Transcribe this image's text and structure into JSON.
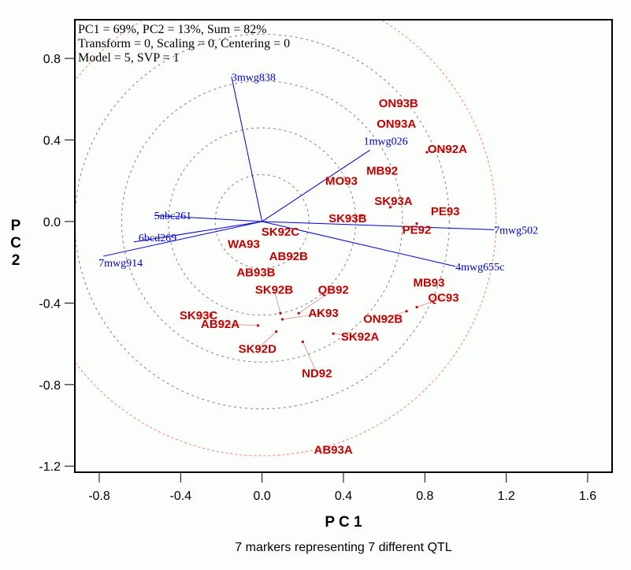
{
  "chart_data": {
    "type": "scatter",
    "subtype": "biplot",
    "xlabel": "P C 1",
    "ylabel": [
      "P",
      "C",
      "2"
    ],
    "caption": "7 markers representing 7 different QTL",
    "xlim": [
      -0.92,
      1.72
    ],
    "ylim": [
      -1.23,
      0.99
    ],
    "x_ticks": [
      -0.8,
      -0.4,
      0.0,
      0.4,
      0.8,
      1.2,
      1.6
    ],
    "x_tick_labels": [
      "-0.8",
      "-0.4",
      "0.0",
      "0.4",
      "0.8",
      "1.2",
      "1.6"
    ],
    "y_ticks": [
      0.8,
      0.4,
      0.0,
      -0.4,
      -0.8,
      -1.2
    ],
    "y_tick_labels": [
      "0.8",
      "0.4",
      "0.0",
      "-0.4",
      "-0.8",
      "-1.2"
    ],
    "stats_lines": [
      "PC1 = 69%, PC2 = 13%, Sum = 82%",
      "Transform = 0, Scaling = 0, Centering = 0",
      "Model = 5, SVP = 1"
    ],
    "concentric_circles": {
      "center": [
        0,
        0
      ],
      "grey_radii": [
        0.23,
        0.46,
        0.69,
        0.92
      ],
      "red_radii": [
        1.15
      ],
      "grey_color": "#808080",
      "red_color": "#f08080"
    },
    "vectors": {
      "color": "#0000cc",
      "origin": [
        0,
        0
      ],
      "items": [
        {
          "name": "3mwg838",
          "x": -0.15,
          "y": 0.71
        },
        {
          "name": "1mwg026",
          "x": 0.53,
          "y": 0.35
        },
        {
          "name": "5abc261",
          "x": -0.53,
          "y": 0.03
        },
        {
          "name": "6bcd269",
          "x": -0.63,
          "y": -0.1
        },
        {
          "name": "7mwg914",
          "x": -0.78,
          "y": -0.17
        },
        {
          "name": "7mwg502",
          "x": 1.14,
          "y": -0.04
        },
        {
          "name": "4mwg655c",
          "x": 0.95,
          "y": -0.22
        }
      ]
    },
    "points": {
      "color": "#c00000",
      "items": [
        {
          "name": "ON93B",
          "x": 0.67,
          "y": 0.58
        },
        {
          "name": "ON93A",
          "x": 0.66,
          "y": 0.48
        },
        {
          "name": "ON92A",
          "x": 0.81,
          "y": 0.34
        },
        {
          "name": "MB92",
          "x": 0.59,
          "y": 0.25
        },
        {
          "name": "MO93",
          "x": 0.39,
          "y": 0.2
        },
        {
          "name": "SK93A",
          "x": 0.63,
          "y": 0.07
        },
        {
          "name": "SK93B",
          "x": 0.49,
          "y": 0.03
        },
        {
          "name": "PE93",
          "x": 0.9,
          "y": 0.05
        },
        {
          "name": "PE92",
          "x": 0.76,
          "y": -0.01
        },
        {
          "name": "SK92C",
          "x": 0.09,
          "y": -0.05
        },
        {
          "name": "WA93",
          "x": -0.09,
          "y": -0.11
        },
        {
          "name": "AB92B",
          "x": 0.13,
          "y": -0.17
        },
        {
          "name": "AB93B",
          "x": -0.03,
          "y": -0.25
        },
        {
          "name": "MB93",
          "x": 0.82,
          "y": -0.3
        },
        {
          "name": "QC93",
          "x": 0.76,
          "y": -0.42
        },
        {
          "name": "ON92B",
          "x": 0.71,
          "y": -0.44
        },
        {
          "name": "SK93C",
          "x": -0.25,
          "y": -0.46
        },
        {
          "name": "SK92B",
          "x": 0.09,
          "y": -0.45
        },
        {
          "name": "QB92",
          "x": 0.18,
          "y": -0.45
        },
        {
          "name": "AK93",
          "x": 0.1,
          "y": -0.48
        },
        {
          "name": "AB92A",
          "x": -0.02,
          "y": -0.51
        },
        {
          "name": "SK92D",
          "x": 0.07,
          "y": -0.54
        },
        {
          "name": "ND92",
          "x": 0.2,
          "y": -0.59
        },
        {
          "name": "SK92A",
          "x": 0.35,
          "y": -0.55
        },
        {
          "name": "AB93A",
          "x": 0.35,
          "y": -1.12
        }
      ]
    },
    "grid": false,
    "legend": "none"
  }
}
